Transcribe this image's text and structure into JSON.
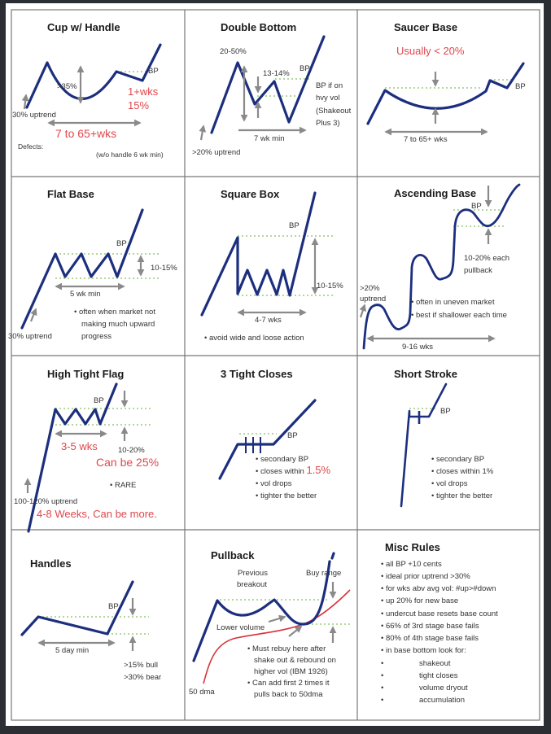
{
  "colors": {
    "price_line": "#1c2f7e",
    "breakout_level": "#86bf62",
    "arrows": "#8a8a8a",
    "highlight_text": "#e0474c",
    "ma_line": "#d8333a"
  },
  "cup_with_handle": {
    "title": "Cup w/ Handle",
    "depth": ">35%",
    "handle_time": "1+wks",
    "handle_depth": "15%",
    "bp": "BP",
    "uptrend": "30% uptrend",
    "duration": "7 to 65+wks",
    "defects": "Defects:",
    "no_handle": "(w/o handle 6 wk min)"
  },
  "double_bottom": {
    "title": "Double Bottom",
    "depth": "20-50%",
    "mid": "13-14%",
    "bp": "BP",
    "note": [
      "BP if on",
      "hvy vol",
      "(Shakeout",
      "Plus 3)"
    ],
    "duration": "7 wk min",
    "uptrend": ">20% uptrend"
  },
  "saucer_base": {
    "title": "Saucer Base",
    "depth": "Usually < 20%",
    "bp": "BP",
    "duration": "7 to 65+ wks"
  },
  "flat_base": {
    "title": "Flat Base",
    "bp": "BP",
    "depth": "10-15%",
    "duration": "5 wk min",
    "note": [
      "• often when market not",
      "making much upward",
      "progress"
    ],
    "uptrend": "30% uptrend"
  },
  "square_box": {
    "title": "Square Box",
    "bp": "BP",
    "depth": "10-15%",
    "duration": "4-7 wks",
    "note": "• avoid wide and loose action"
  },
  "ascending_base": {
    "title": "Ascending Base",
    "bp": "BP",
    "pullback": [
      "10-20% each",
      "pullback"
    ],
    "uptrend": [
      ">20%",
      "uptrend"
    ],
    "notes": [
      "• often in uneven market",
      "• best if shallower each time"
    ],
    "duration": "9-16 wks"
  },
  "high_tight_flag": {
    "title": "High Tight Flag",
    "bp": "BP",
    "duration": "3-5 wks",
    "depth": "10-20%",
    "depth_alt": "Can be 25%",
    "rare": "• RARE",
    "uptrend": "100-120% uptrend",
    "uptrend_time": "4-8 Weeks, Can be more."
  },
  "three_tight_closes": {
    "title": "3 Tight Closes",
    "bp": "BP",
    "notes": [
      "• secondary BP",
      "• closes within ",
      "• vol drops",
      "• tighter the better"
    ],
    "closes_value": "1.5%"
  },
  "short_stroke": {
    "title": "Short Stroke",
    "bp": "BP",
    "notes": [
      "• secondary BP",
      "• closes within 1%",
      "• vol drops",
      "• tighter the better"
    ]
  },
  "handles": {
    "title": "Handles",
    "bp": "BP",
    "duration": "5 day min",
    "depth": [
      ">15% bull",
      ">30% bear"
    ]
  },
  "pullback": {
    "title": "Pullback",
    "previous": [
      "Previous",
      "breakout"
    ],
    "buy_range": "Buy range",
    "lower_volume": "Lower volume",
    "notes": [
      "• Must rebuy here after",
      "shake out & rebound on",
      "higher vol (IBM 1926)",
      "• Can add first 2 times it",
      "pulls back to 50dma"
    ],
    "ma": "50 dma"
  },
  "misc_rules": {
    "title": "Misc Rules",
    "rules": [
      "• all BP +10 cents",
      "• ideal prior uptrend >30%",
      "• for wks abv avg vol: #up>#down",
      "• up 20% for new base",
      "• undercut base resets base count",
      "• 66% of 3rd stage base fails",
      "• 80% of 4th stage base fails",
      "• in base bottom look for:"
    ],
    "look_for": [
      "shakeout",
      "tight closes",
      "volume dryout",
      "accumulation"
    ]
  }
}
